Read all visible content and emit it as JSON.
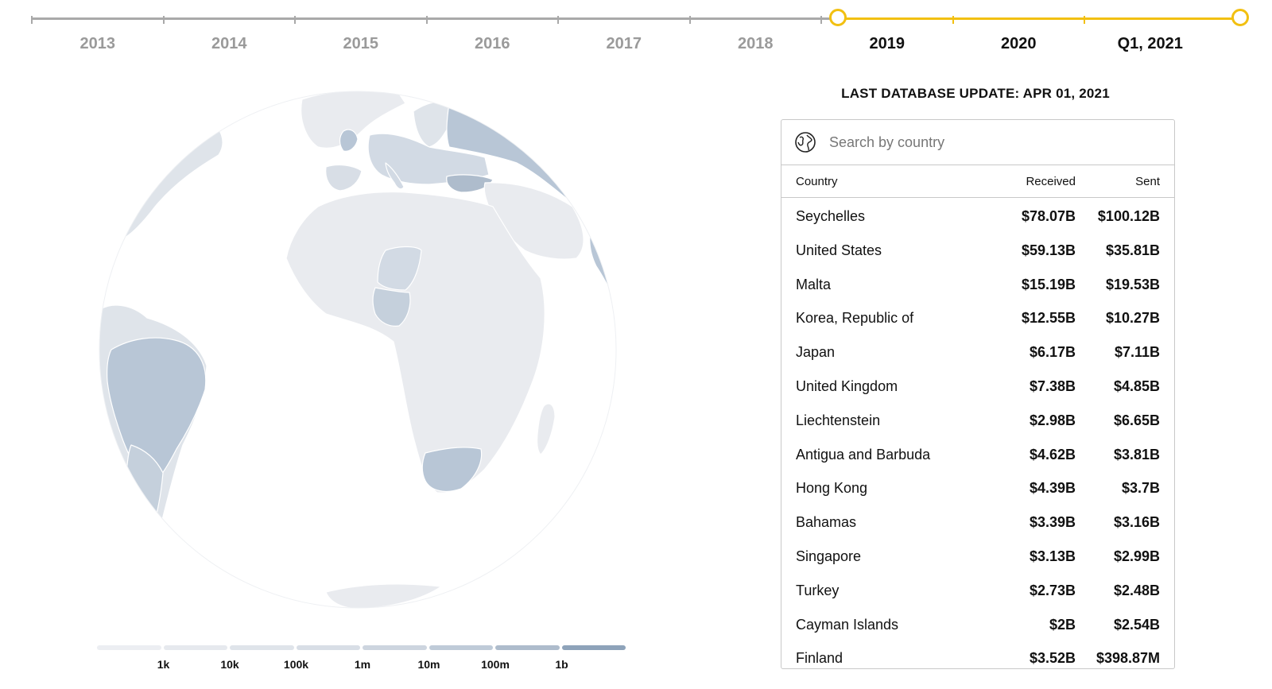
{
  "timeline": {
    "years": [
      {
        "label": "2013",
        "active": false
      },
      {
        "label": "2014",
        "active": false
      },
      {
        "label": "2015",
        "active": false
      },
      {
        "label": "2016",
        "active": false
      },
      {
        "label": "2017",
        "active": false
      },
      {
        "label": "2018",
        "active": false
      },
      {
        "label": "2019",
        "active": true
      },
      {
        "label": "2020",
        "active": true
      },
      {
        "label": "Q1, 2021",
        "active": true
      }
    ],
    "selected_range": [
      "2019",
      "Q1, 2021"
    ]
  },
  "colors": {
    "accent": "#f2c011",
    "timeline_inactive": "#a9a9a9",
    "land_base": "#e9ebef",
    "land_highlight": "#b8c6d6",
    "land_mid": "#d2dae4",
    "ocean": "#ffffff"
  },
  "legend": {
    "labels": [
      "1k",
      "10k",
      "100k",
      "1m",
      "10m",
      "100m",
      "1b"
    ],
    "segment_colors": [
      "#eceef2",
      "#e6e9ee",
      "#dfe4ea",
      "#d8dee6",
      "#cdd5df",
      "#bfcbd8",
      "#aebccc",
      "#8ea3ba"
    ]
  },
  "db_update": "LAST DATABASE UPDATE: APR 01, 2021",
  "search": {
    "placeholder": "Search by country",
    "value": ""
  },
  "table": {
    "headers": {
      "country": "Country",
      "received": "Received",
      "sent": "Sent"
    },
    "rows": [
      {
        "country": "Seychelles",
        "received": "$78.07B",
        "sent": "$100.12B"
      },
      {
        "country": "United States",
        "received": "$59.13B",
        "sent": "$35.81B"
      },
      {
        "country": "Malta",
        "received": "$15.19B",
        "sent": "$19.53B"
      },
      {
        "country": "Korea, Republic of",
        "received": "$12.55B",
        "sent": "$10.27B"
      },
      {
        "country": "Japan",
        "received": "$6.17B",
        "sent": "$7.11B"
      },
      {
        "country": "United Kingdom",
        "received": "$7.38B",
        "sent": "$4.85B"
      },
      {
        "country": "Liechtenstein",
        "received": "$2.98B",
        "sent": "$6.65B"
      },
      {
        "country": "Antigua and Barbuda",
        "received": "$4.62B",
        "sent": "$3.81B"
      },
      {
        "country": "Hong Kong",
        "received": "$4.39B",
        "sent": "$3.7B"
      },
      {
        "country": "Bahamas",
        "received": "$3.39B",
        "sent": "$3.16B"
      },
      {
        "country": "Singapore",
        "received": "$3.13B",
        "sent": "$2.99B"
      },
      {
        "country": "Turkey",
        "received": "$2.73B",
        "sent": "$2.48B"
      },
      {
        "country": "Cayman Islands",
        "received": "$2B",
        "sent": "$2.54B"
      },
      {
        "country": "Finland",
        "received": "$3.52B",
        "sent": "$398.87M"
      }
    ]
  }
}
